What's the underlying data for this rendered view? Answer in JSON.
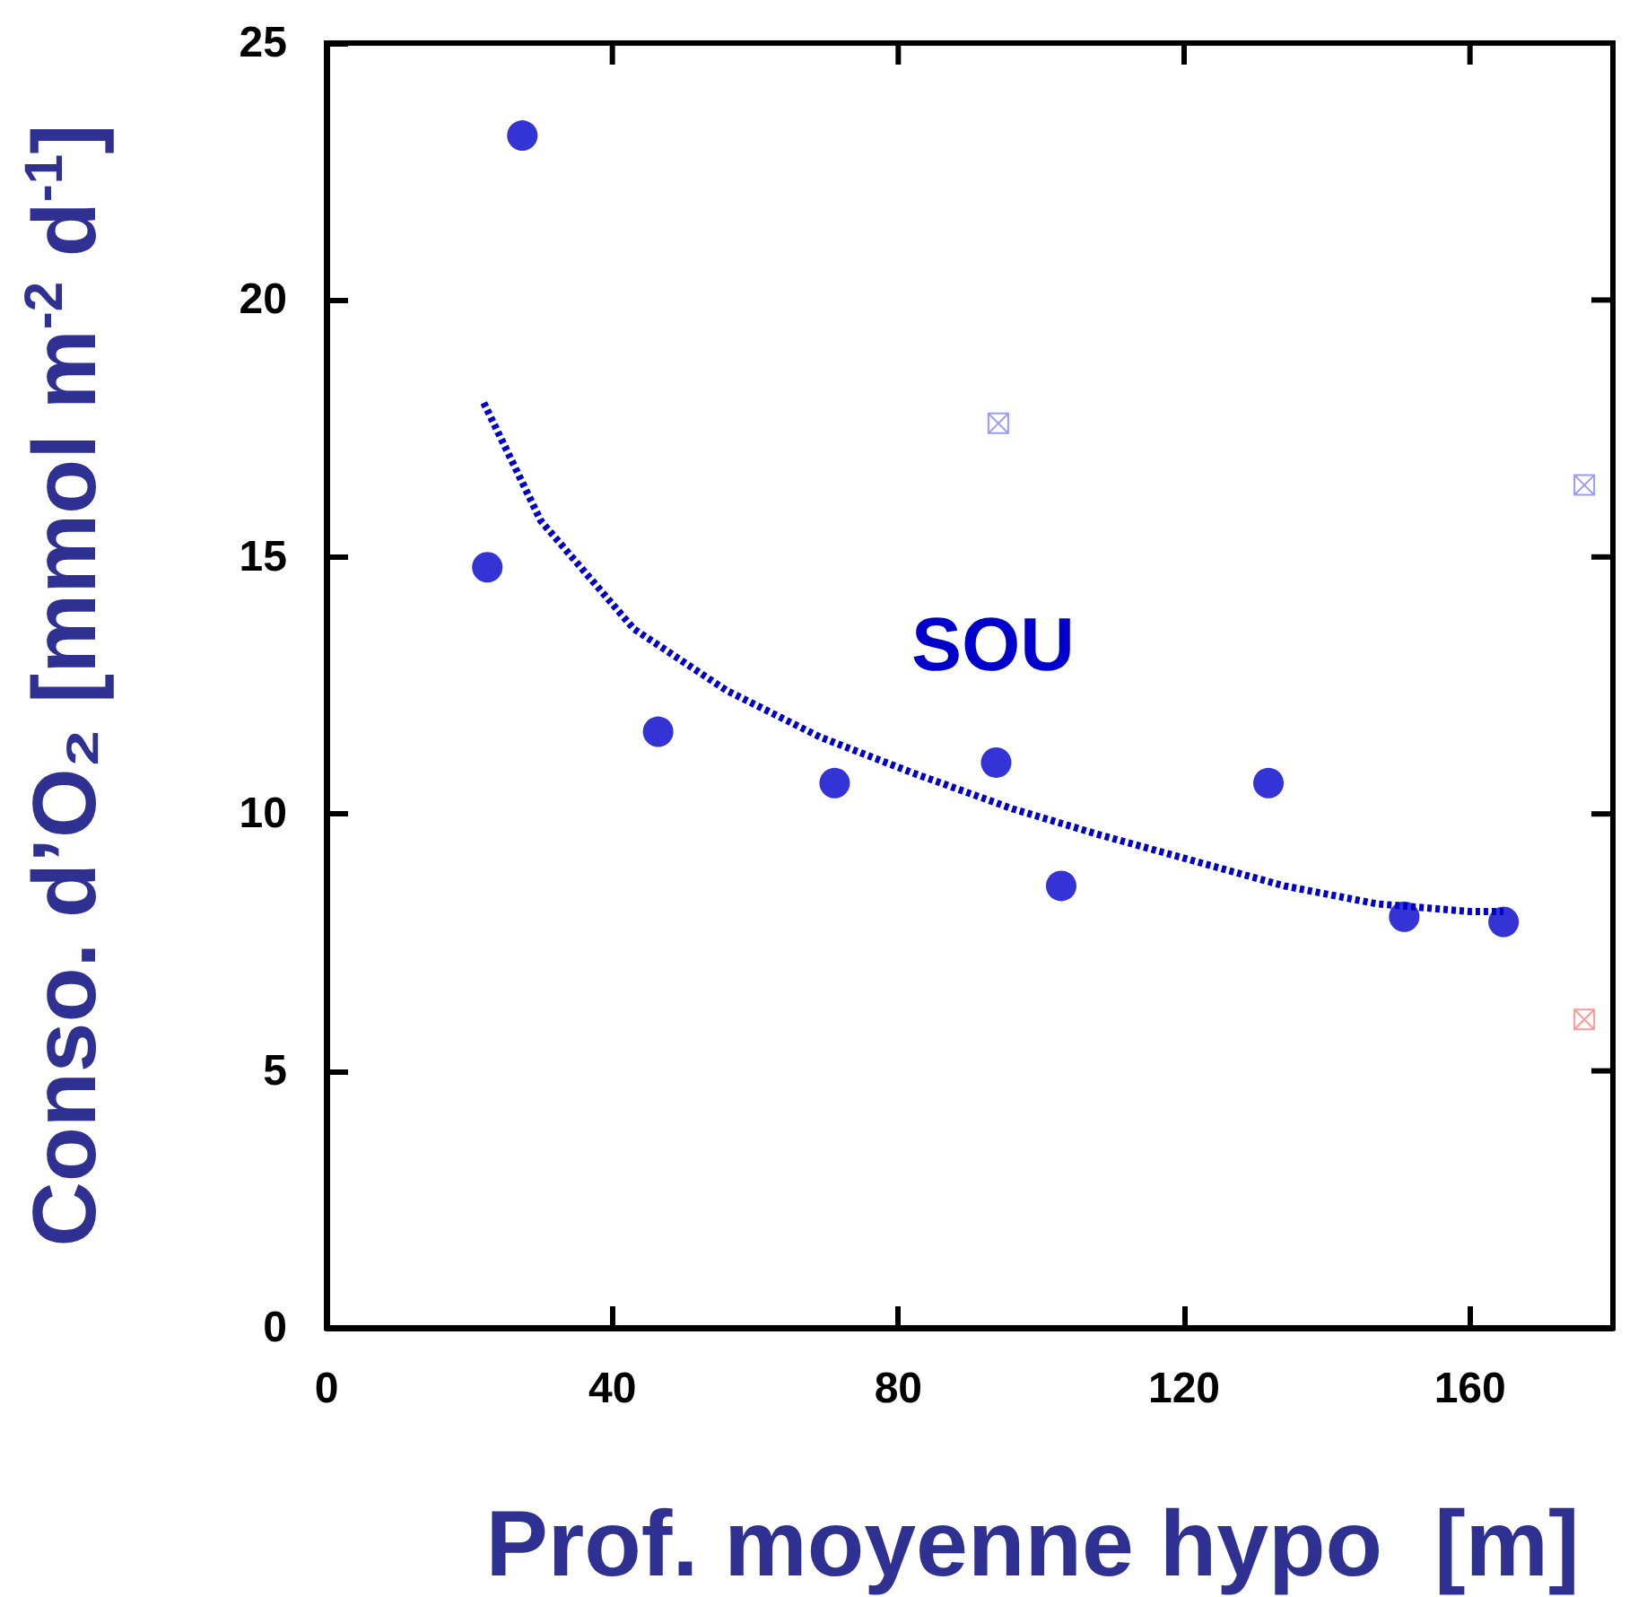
{
  "chart_data": {
    "type": "scatter",
    "xlabel": "Prof. moyenne hypo  [m]",
    "ylabel": "Conso. d’O₂ [mmol m$^{-2}$ d$^{-1}$]",
    "annotations": [
      "SOU"
    ],
    "xlim": [
      0,
      180
    ],
    "xticks": [
      0,
      40,
      80,
      120,
      160
    ],
    "ylim": [
      0,
      25
    ],
    "yticks": [
      0,
      5,
      10,
      15,
      20,
      25
    ],
    "grid": false,
    "series": [
      {
        "marker": "circle",
        "color": "#0000cc",
        "x": [
          22.5,
          27.4,
          46.4,
          71.1,
          93.7,
          102.8,
          131.8,
          150.8,
          164.7
        ],
        "values": [
          14.8,
          23.2,
          11.6,
          10.6,
          11.0,
          8.6,
          10.6,
          8.0,
          7.9
        ]
      },
      {
        "marker": "cross",
        "color": "#8080ff",
        "x": [
          94,
          176
        ],
        "values": [
          17.6,
          16.4
        ]
      },
      {
        "marker": "cross",
        "color": "#ff8080",
        "x": [
          176
        ],
        "values": [
          6.0
        ]
      },
      {
        "type": "line",
        "marker": "none",
        "line_style": "dotted",
        "color": "#0000cc",
        "x": [
          22,
          30,
          43,
          56,
          69,
          82,
          96,
          108,
          121,
          134,
          147,
          160,
          164.7
        ],
        "values": [
          18.0,
          15.7,
          13.6,
          12.4,
          11.5,
          10.8,
          10.1,
          9.6,
          9.1,
          8.6,
          8.25,
          8.1,
          8.1
        ]
      }
    ]
  }
}
